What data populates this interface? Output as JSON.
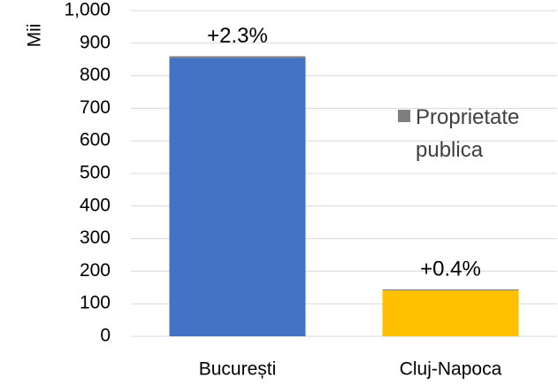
{
  "chart_data": {
    "type": "stacked_bar",
    "y_label": "Mii",
    "categories": [
      "București",
      "Cluj-Napoca"
    ],
    "series": [
      {
        "colors": [
          "#4472c4",
          "#ffc000"
        ],
        "values": [
          855,
          141
        ]
      },
      {
        "name": "Proprietate publica",
        "color": "#7f7f7f",
        "values": [
          5,
          3
        ]
      }
    ],
    "annotations": [
      "+2.3%",
      "+0.4%"
    ],
    "annotation_color": "#00b050",
    "ylim": [
      0,
      1000
    ],
    "yticks": [
      0,
      100,
      200,
      300,
      400,
      500,
      600,
      700,
      800,
      900,
      {
        "value": 1000,
        "label": "1,000"
      }
    ],
    "grid": true,
    "legend": "right"
  }
}
